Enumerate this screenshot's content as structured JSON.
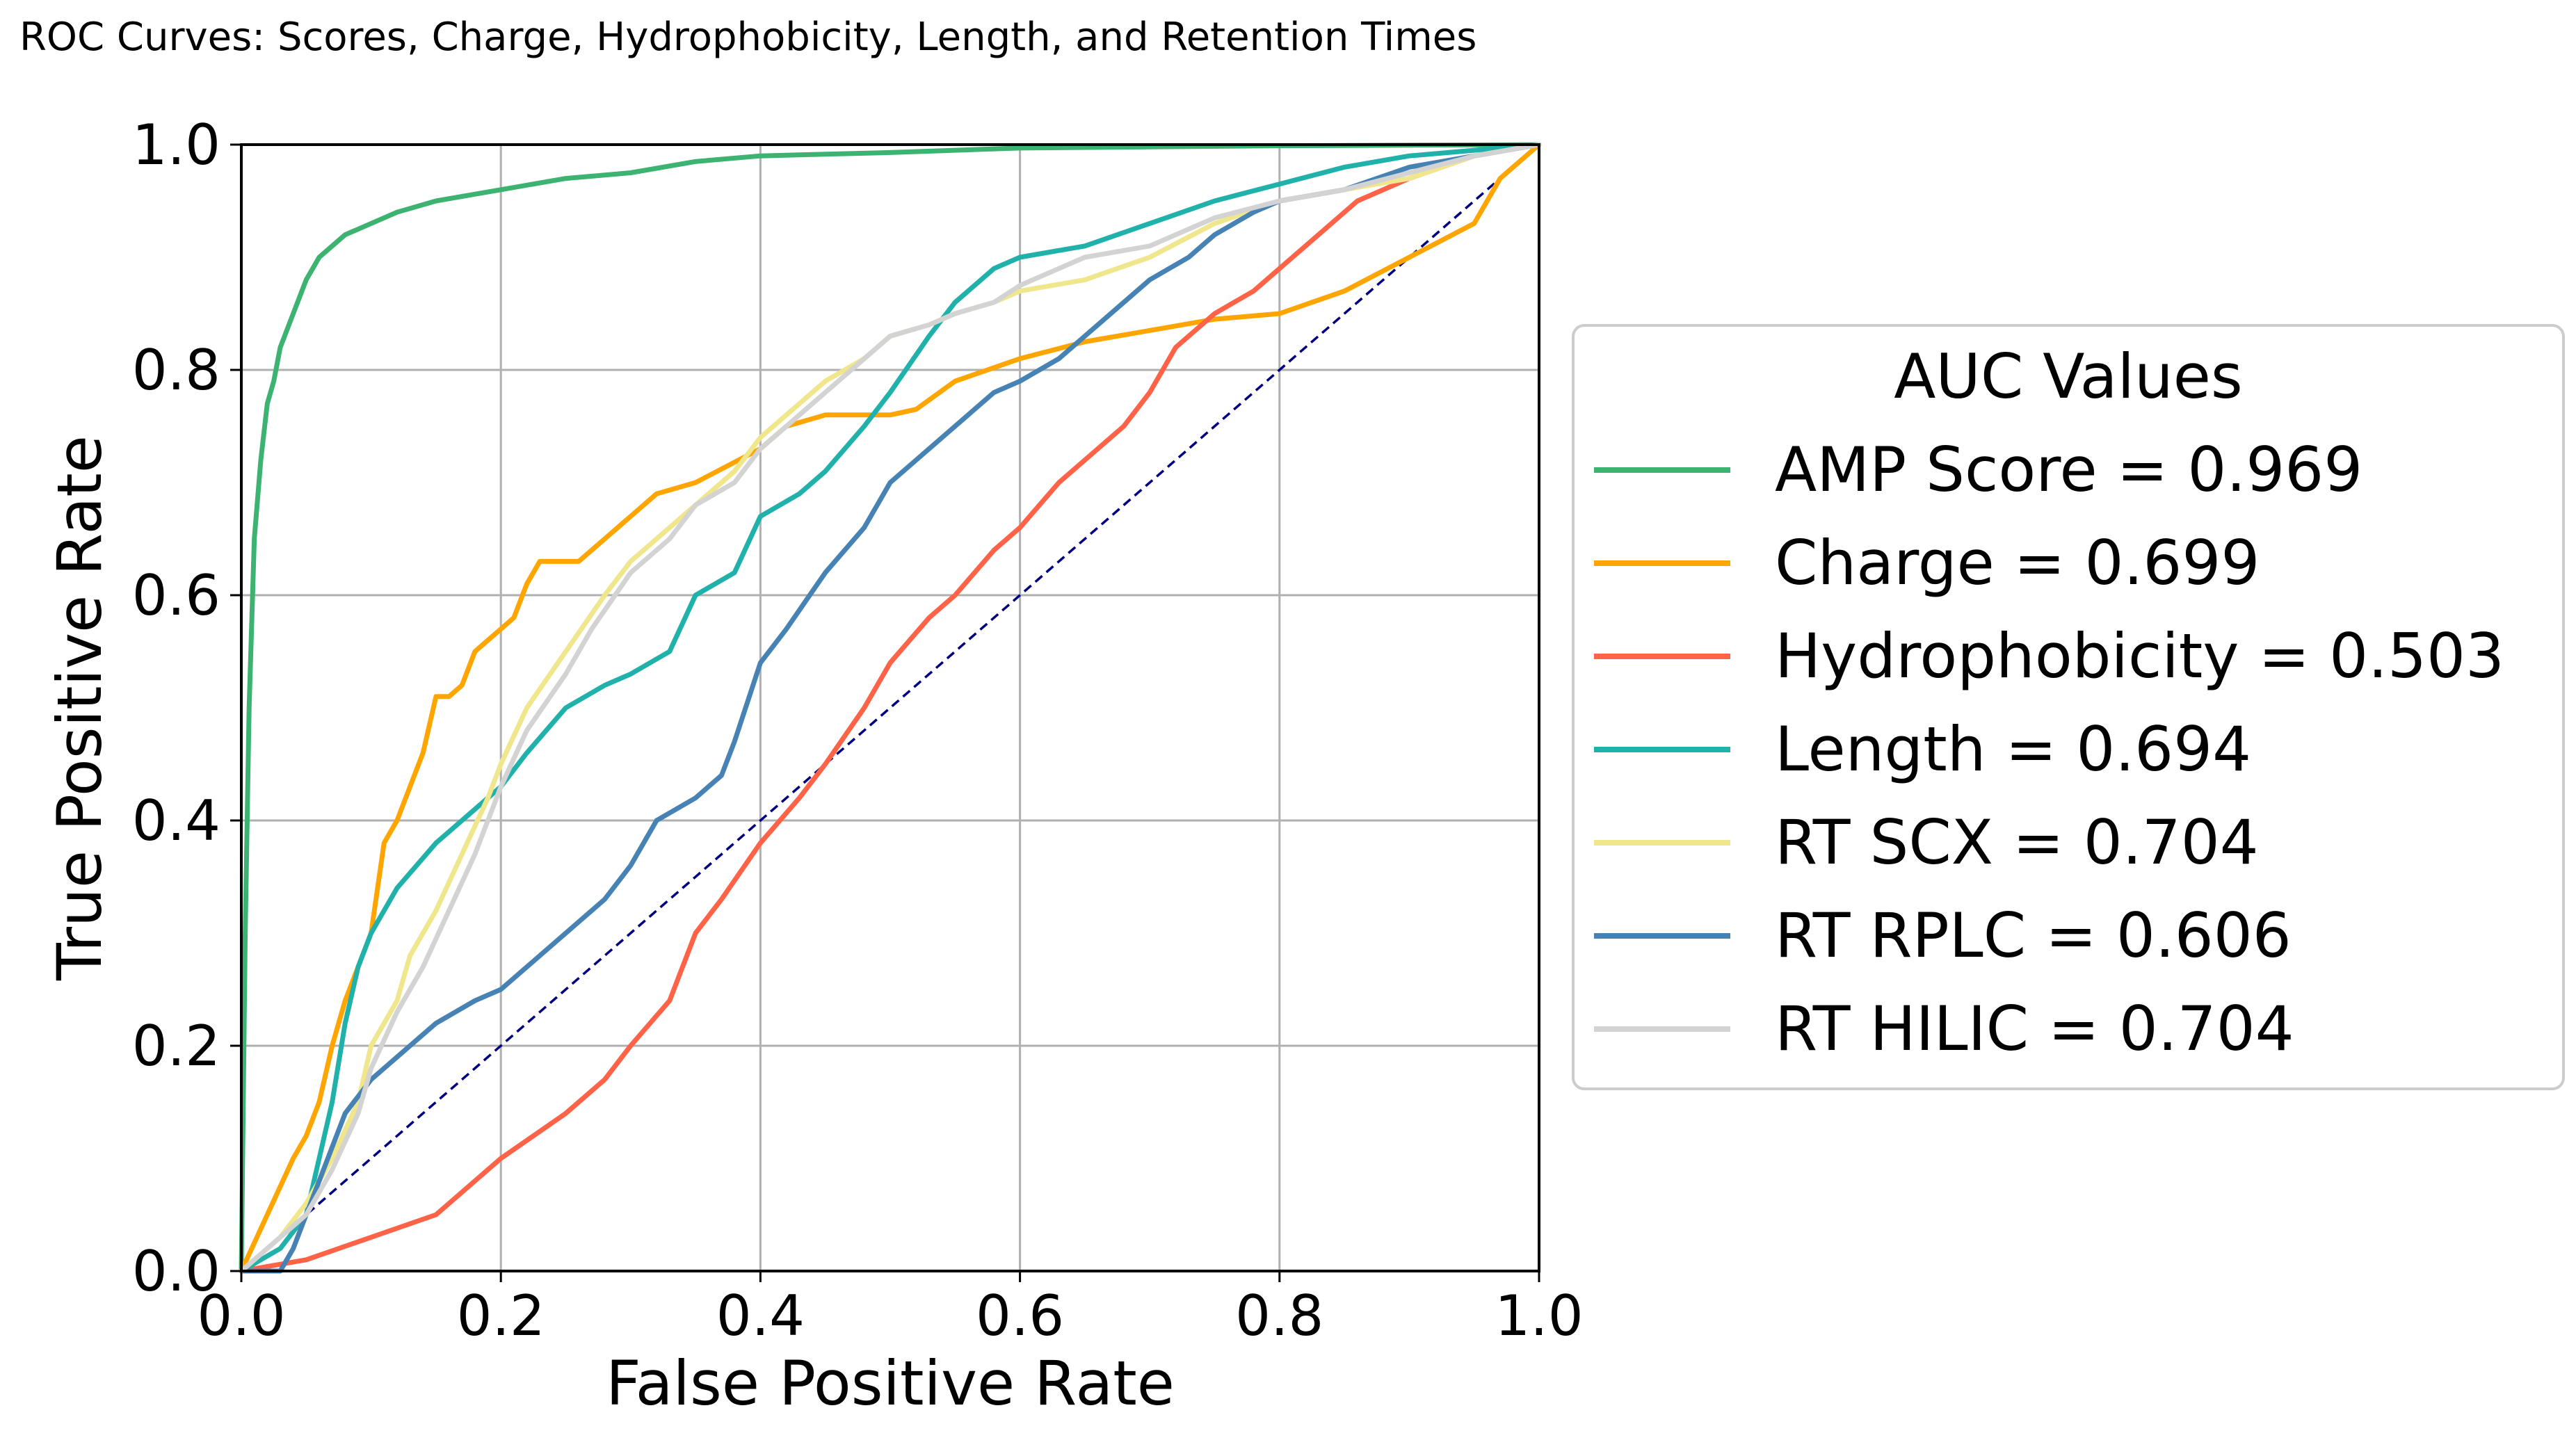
{
  "chart_data": {
    "type": "line",
    "title": "ROC Curves: Scores, Charge, Hydrophobicity, Length, and Retention Times",
    "xlabel": "False Positive Rate",
    "ylabel": "True Positive Rate",
    "xlim": [
      0,
      1
    ],
    "ylim": [
      0,
      1
    ],
    "xticks": [
      "0.0",
      "0.2",
      "0.4",
      "0.6",
      "0.8",
      "1.0"
    ],
    "yticks": [
      "0.0",
      "0.2",
      "0.4",
      "0.6",
      "0.8",
      "1.0"
    ],
    "grid": true,
    "legend": {
      "title": "AUC Values",
      "position": "outside-right"
    },
    "series": [
      {
        "name": "AMP Score = 0.969",
        "color": "#3cb371",
        "points": [
          [
            0,
            0
          ],
          [
            0.003,
            0.3
          ],
          [
            0.006,
            0.5
          ],
          [
            0.01,
            0.65
          ],
          [
            0.015,
            0.72
          ],
          [
            0.02,
            0.77
          ],
          [
            0.025,
            0.79
          ],
          [
            0.03,
            0.82
          ],
          [
            0.04,
            0.85
          ],
          [
            0.05,
            0.88
          ],
          [
            0.06,
            0.9
          ],
          [
            0.07,
            0.91
          ],
          [
            0.08,
            0.92
          ],
          [
            0.1,
            0.93
          ],
          [
            0.12,
            0.94
          ],
          [
            0.15,
            0.95
          ],
          [
            0.2,
            0.96
          ],
          [
            0.25,
            0.97
          ],
          [
            0.3,
            0.975
          ],
          [
            0.35,
            0.985
          ],
          [
            0.4,
            0.99
          ],
          [
            0.5,
            0.993
          ],
          [
            0.6,
            0.997
          ],
          [
            0.8,
            0.999
          ],
          [
            1,
            1
          ]
        ]
      },
      {
        "name": "Charge = 0.699",
        "color": "#ffa500",
        "points": [
          [
            0,
            0
          ],
          [
            0.02,
            0.05
          ],
          [
            0.04,
            0.1
          ],
          [
            0.05,
            0.12
          ],
          [
            0.06,
            0.15
          ],
          [
            0.07,
            0.2
          ],
          [
            0.08,
            0.24
          ],
          [
            0.09,
            0.27
          ],
          [
            0.1,
            0.3
          ],
          [
            0.11,
            0.38
          ],
          [
            0.12,
            0.4
          ],
          [
            0.13,
            0.43
          ],
          [
            0.14,
            0.46
          ],
          [
            0.15,
            0.51
          ],
          [
            0.16,
            0.51
          ],
          [
            0.17,
            0.52
          ],
          [
            0.18,
            0.55
          ],
          [
            0.19,
            0.56
          ],
          [
            0.2,
            0.57
          ],
          [
            0.21,
            0.58
          ],
          [
            0.22,
            0.61
          ],
          [
            0.23,
            0.63
          ],
          [
            0.26,
            0.63
          ],
          [
            0.28,
            0.65
          ],
          [
            0.3,
            0.67
          ],
          [
            0.32,
            0.69
          ],
          [
            0.35,
            0.7
          ],
          [
            0.4,
            0.73
          ],
          [
            0.42,
            0.75
          ],
          [
            0.45,
            0.76
          ],
          [
            0.5,
            0.76
          ],
          [
            0.52,
            0.765
          ],
          [
            0.55,
            0.79
          ],
          [
            0.6,
            0.81
          ],
          [
            0.65,
            0.825
          ],
          [
            0.7,
            0.835
          ],
          [
            0.75,
            0.845
          ],
          [
            0.8,
            0.85
          ],
          [
            0.85,
            0.87
          ],
          [
            0.9,
            0.9
          ],
          [
            0.95,
            0.93
          ],
          [
            0.97,
            0.97
          ],
          [
            1,
            1
          ]
        ]
      },
      {
        "name": "Hydrophobicity = 0.503",
        "color": "#ff6347",
        "points": [
          [
            0,
            0
          ],
          [
            0.05,
            0.01
          ],
          [
            0.1,
            0.03
          ],
          [
            0.15,
            0.05
          ],
          [
            0.2,
            0.1
          ],
          [
            0.25,
            0.14
          ],
          [
            0.28,
            0.17
          ],
          [
            0.3,
            0.2
          ],
          [
            0.33,
            0.24
          ],
          [
            0.35,
            0.3
          ],
          [
            0.37,
            0.33
          ],
          [
            0.4,
            0.38
          ],
          [
            0.43,
            0.42
          ],
          [
            0.45,
            0.45
          ],
          [
            0.48,
            0.5
          ],
          [
            0.5,
            0.54
          ],
          [
            0.53,
            0.58
          ],
          [
            0.55,
            0.6
          ],
          [
            0.58,
            0.64
          ],
          [
            0.6,
            0.66
          ],
          [
            0.63,
            0.7
          ],
          [
            0.65,
            0.72
          ],
          [
            0.68,
            0.75
          ],
          [
            0.7,
            0.78
          ],
          [
            0.72,
            0.82
          ],
          [
            0.75,
            0.85
          ],
          [
            0.78,
            0.87
          ],
          [
            0.8,
            0.89
          ],
          [
            0.83,
            0.92
          ],
          [
            0.86,
            0.95
          ],
          [
            0.9,
            0.97
          ],
          [
            0.95,
            0.99
          ],
          [
            1,
            1
          ]
        ]
      },
      {
        "name": "Length = 0.694",
        "color": "#20b2aa",
        "points": [
          [
            0,
            0
          ],
          [
            0.03,
            0.02
          ],
          [
            0.05,
            0.05
          ],
          [
            0.06,
            0.1
          ],
          [
            0.07,
            0.15
          ],
          [
            0.08,
            0.22
          ],
          [
            0.09,
            0.27
          ],
          [
            0.1,
            0.3
          ],
          [
            0.12,
            0.34
          ],
          [
            0.15,
            0.38
          ],
          [
            0.18,
            0.41
          ],
          [
            0.2,
            0.43
          ],
          [
            0.22,
            0.46
          ],
          [
            0.25,
            0.5
          ],
          [
            0.28,
            0.52
          ],
          [
            0.3,
            0.53
          ],
          [
            0.33,
            0.55
          ],
          [
            0.35,
            0.6
          ],
          [
            0.38,
            0.62
          ],
          [
            0.4,
            0.67
          ],
          [
            0.43,
            0.69
          ],
          [
            0.45,
            0.71
          ],
          [
            0.48,
            0.75
          ],
          [
            0.5,
            0.78
          ],
          [
            0.53,
            0.83
          ],
          [
            0.55,
            0.86
          ],
          [
            0.58,
            0.89
          ],
          [
            0.6,
            0.9
          ],
          [
            0.65,
            0.91
          ],
          [
            0.7,
            0.93
          ],
          [
            0.75,
            0.95
          ],
          [
            0.8,
            0.965
          ],
          [
            0.85,
            0.98
          ],
          [
            0.9,
            0.99
          ],
          [
            0.95,
            0.995
          ],
          [
            1,
            1
          ]
        ]
      },
      {
        "name": "RT SCX = 0.704",
        "color": "#f0e68c",
        "points": [
          [
            0,
            0
          ],
          [
            0.03,
            0.03
          ],
          [
            0.05,
            0.06
          ],
          [
            0.07,
            0.1
          ],
          [
            0.09,
            0.15
          ],
          [
            0.1,
            0.2
          ],
          [
            0.12,
            0.24
          ],
          [
            0.13,
            0.28
          ],
          [
            0.15,
            0.32
          ],
          [
            0.17,
            0.37
          ],
          [
            0.19,
            0.42
          ],
          [
            0.2,
            0.45
          ],
          [
            0.22,
            0.5
          ],
          [
            0.25,
            0.55
          ],
          [
            0.28,
            0.6
          ],
          [
            0.3,
            0.63
          ],
          [
            0.33,
            0.66
          ],
          [
            0.35,
            0.68
          ],
          [
            0.38,
            0.71
          ],
          [
            0.4,
            0.74
          ],
          [
            0.43,
            0.77
          ],
          [
            0.45,
            0.79
          ],
          [
            0.48,
            0.81
          ],
          [
            0.5,
            0.83
          ],
          [
            0.53,
            0.84
          ],
          [
            0.55,
            0.85
          ],
          [
            0.58,
            0.86
          ],
          [
            0.6,
            0.87
          ],
          [
            0.65,
            0.88
          ],
          [
            0.7,
            0.9
          ],
          [
            0.75,
            0.93
          ],
          [
            0.8,
            0.95
          ],
          [
            0.85,
            0.96
          ],
          [
            0.9,
            0.97
          ],
          [
            0.95,
            0.99
          ],
          [
            1,
            1
          ]
        ]
      },
      {
        "name": "RT RPLC = 0.606",
        "color": "#4682b4",
        "points": [
          [
            0,
            0
          ],
          [
            0.03,
            0
          ],
          [
            0.04,
            0.02
          ],
          [
            0.05,
            0.05
          ],
          [
            0.06,
            0.08
          ],
          [
            0.07,
            0.11
          ],
          [
            0.08,
            0.14
          ],
          [
            0.1,
            0.17
          ],
          [
            0.12,
            0.19
          ],
          [
            0.15,
            0.22
          ],
          [
            0.18,
            0.24
          ],
          [
            0.2,
            0.25
          ],
          [
            0.22,
            0.27
          ],
          [
            0.25,
            0.3
          ],
          [
            0.28,
            0.33
          ],
          [
            0.3,
            0.36
          ],
          [
            0.32,
            0.4
          ],
          [
            0.35,
            0.42
          ],
          [
            0.37,
            0.44
          ],
          [
            0.38,
            0.47
          ],
          [
            0.4,
            0.54
          ],
          [
            0.42,
            0.57
          ],
          [
            0.45,
            0.62
          ],
          [
            0.48,
            0.66
          ],
          [
            0.5,
            0.7
          ],
          [
            0.52,
            0.72
          ],
          [
            0.55,
            0.75
          ],
          [
            0.58,
            0.78
          ],
          [
            0.6,
            0.79
          ],
          [
            0.63,
            0.81
          ],
          [
            0.65,
            0.83
          ],
          [
            0.68,
            0.86
          ],
          [
            0.7,
            0.88
          ],
          [
            0.73,
            0.9
          ],
          [
            0.75,
            0.92
          ],
          [
            0.78,
            0.94
          ],
          [
            0.8,
            0.95
          ],
          [
            0.85,
            0.96
          ],
          [
            0.9,
            0.98
          ],
          [
            0.95,
            0.99
          ],
          [
            1,
            1
          ]
        ]
      },
      {
        "name": "RT HILIC = 0.704",
        "color": "#d3d3d3",
        "points": [
          [
            0,
            0
          ],
          [
            0.03,
            0.03
          ],
          [
            0.05,
            0.05
          ],
          [
            0.07,
            0.09
          ],
          [
            0.09,
            0.14
          ],
          [
            0.1,
            0.18
          ],
          [
            0.12,
            0.23
          ],
          [
            0.14,
            0.27
          ],
          [
            0.16,
            0.32
          ],
          [
            0.18,
            0.37
          ],
          [
            0.2,
            0.43
          ],
          [
            0.22,
            0.48
          ],
          [
            0.25,
            0.53
          ],
          [
            0.27,
            0.57
          ],
          [
            0.3,
            0.62
          ],
          [
            0.33,
            0.65
          ],
          [
            0.35,
            0.68
          ],
          [
            0.38,
            0.7
          ],
          [
            0.4,
            0.73
          ],
          [
            0.43,
            0.76
          ],
          [
            0.45,
            0.78
          ],
          [
            0.48,
            0.81
          ],
          [
            0.5,
            0.83
          ],
          [
            0.53,
            0.84
          ],
          [
            0.55,
            0.85
          ],
          [
            0.58,
            0.86
          ],
          [
            0.6,
            0.875
          ],
          [
            0.63,
            0.89
          ],
          [
            0.65,
            0.9
          ],
          [
            0.7,
            0.91
          ],
          [
            0.75,
            0.935
          ],
          [
            0.8,
            0.95
          ],
          [
            0.85,
            0.96
          ],
          [
            0.9,
            0.975
          ],
          [
            0.95,
            0.99
          ],
          [
            1,
            1
          ]
        ]
      }
    ],
    "reference_line": {
      "color": "#000080",
      "style": "dashed",
      "points": [
        [
          0,
          0
        ],
        [
          1,
          1
        ]
      ]
    }
  }
}
